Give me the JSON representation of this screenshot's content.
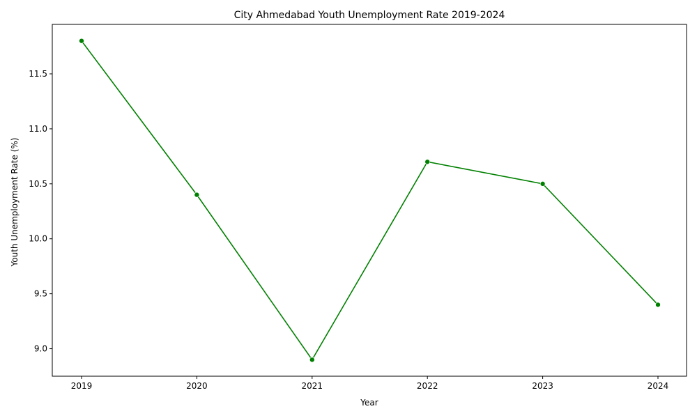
{
  "chart_data": {
    "type": "line",
    "title": "City Ahmedabad Youth Unemployment Rate 2019-2024",
    "xlabel": "Year",
    "ylabel": "Youth Unemployment Rate (%)",
    "x": [
      "2019",
      "2020",
      "2021",
      "2022",
      "2023",
      "2024"
    ],
    "series": [
      {
        "values": [
          11.8,
          10.4,
          8.9,
          10.7,
          10.5,
          9.4
        ],
        "color": "#008000"
      }
    ],
    "ylim": [
      8.75,
      11.95
    ],
    "yticks": [
      9.0,
      9.5,
      10.0,
      10.5,
      11.0,
      11.5
    ],
    "ytick_labels": [
      "9.0",
      "9.5",
      "10.0",
      "10.5",
      "11.0",
      "11.5"
    ],
    "grid": false,
    "marker": "circle"
  }
}
